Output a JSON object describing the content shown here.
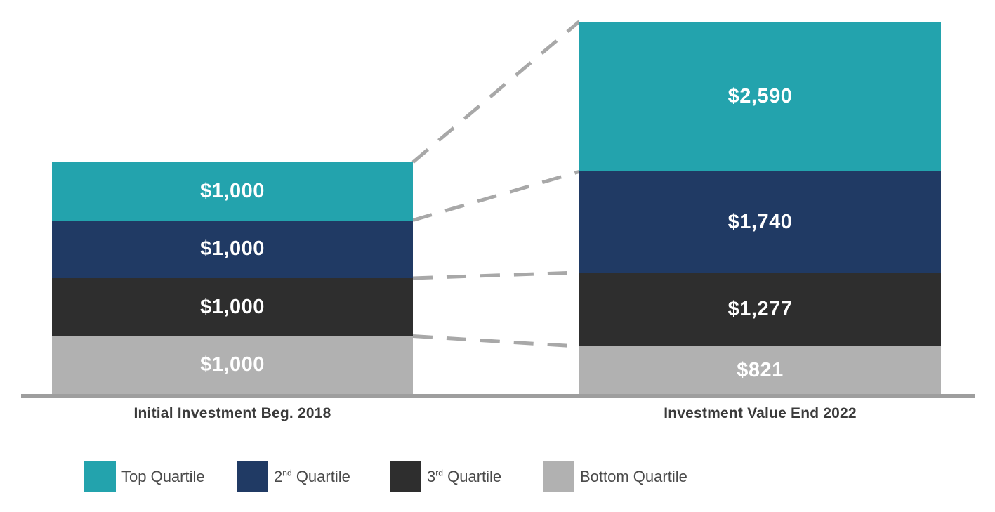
{
  "chart_data": {
    "type": "bar",
    "stacked": true,
    "title": "",
    "categories": [
      "Initial Investment Beg. 2018",
      "Investment Value End 2022"
    ],
    "series": [
      {
        "name": "Top Quartile",
        "name_base": "Top Quartile",
        "name_sup": "",
        "name_rest": "",
        "color": "#23a3ad",
        "values": [
          1000,
          2590
        ],
        "value_labels": [
          "$1,000",
          "$2,590"
        ]
      },
      {
        "name": "2nd Quartile",
        "name_base": "2",
        "name_sup": "nd",
        "name_rest": " Quartile",
        "color": "#203a64",
        "values": [
          1000,
          1740
        ],
        "value_labels": [
          "$1,000",
          "$1,740"
        ]
      },
      {
        "name": "3rd Quartile",
        "name_base": "3",
        "name_sup": "rd",
        "name_rest": " Quartile",
        "color": "#2e2e2e",
        "values": [
          1000,
          1277
        ],
        "value_labels": [
          "$1,000",
          "$1,277"
        ]
      },
      {
        "name": "Bottom Quartile",
        "name_base": "Bottom Quartile",
        "name_sup": "",
        "name_rest": "",
        "color": "#b1b1b1",
        "values": [
          1000,
          821
        ],
        "value_labels": [
          "$1,000",
          "$821"
        ]
      }
    ],
    "value_label_color": "#ffffff",
    "axis_baseline_color": "#9e9e9e",
    "connector_color": "#a8a8a8",
    "legend_position": "bottom",
    "grid": false,
    "ylim": [
      0,
      6428
    ]
  }
}
